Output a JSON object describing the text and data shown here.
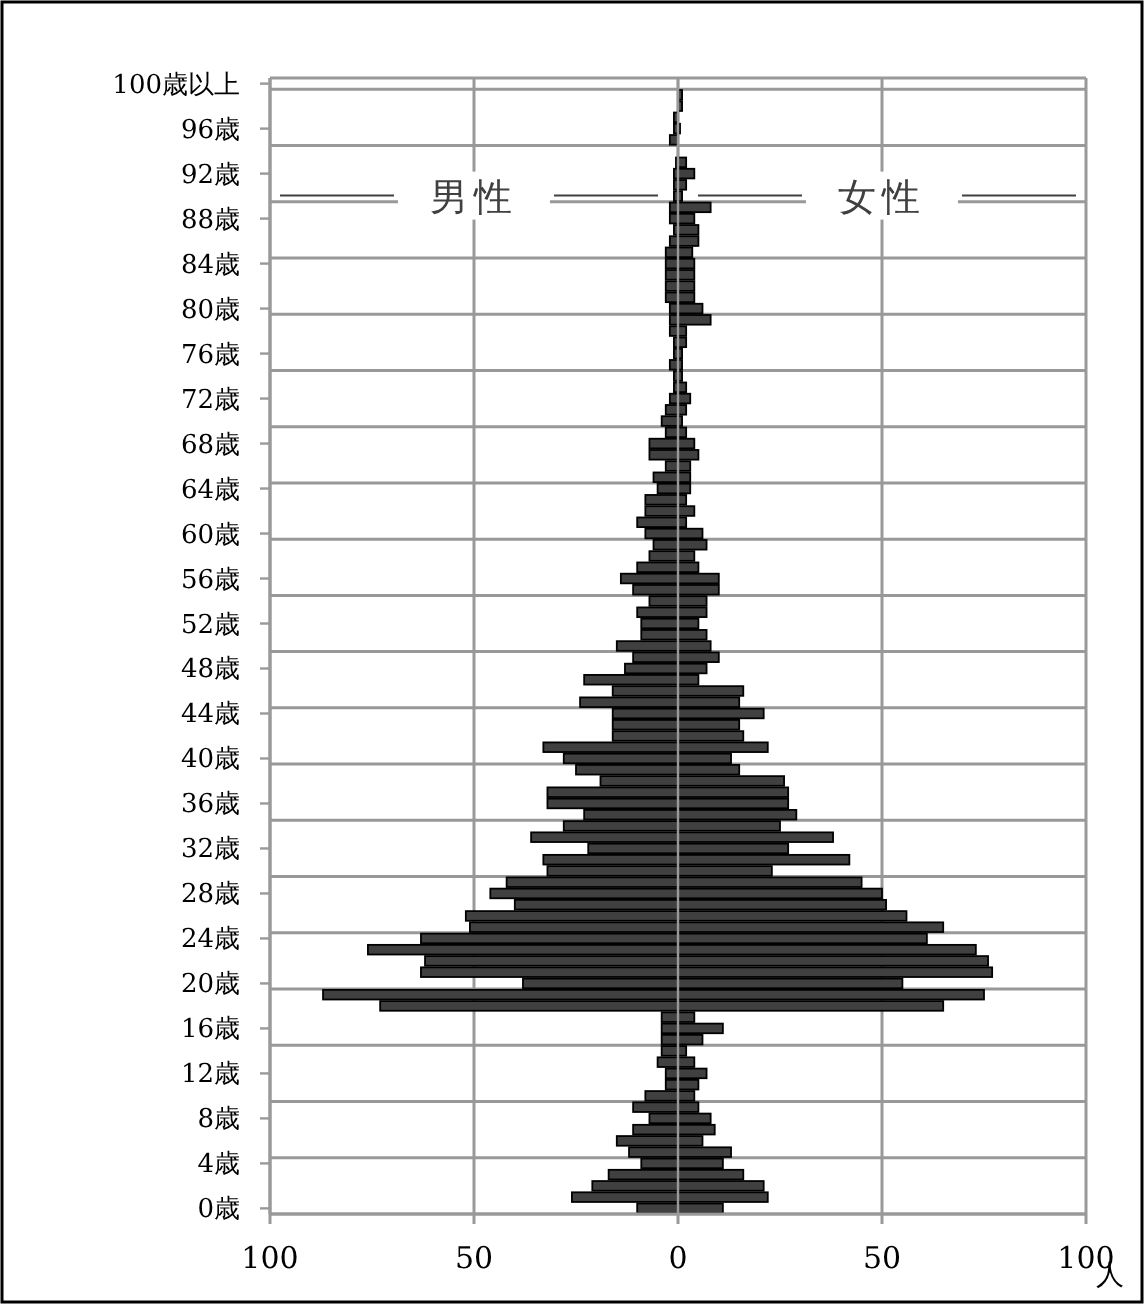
{
  "chart_data": {
    "type": "bar",
    "orientation": "horizontal",
    "stacked": true,
    "xlabel": "人",
    "categories": [
      "100歳以上",
      null,
      null,
      null,
      "96歳",
      null,
      null,
      null,
      "92歳",
      null,
      null,
      null,
      "88歳",
      null,
      null,
      null,
      "84歳",
      null,
      null,
      null,
      "80歳",
      null,
      null,
      null,
      "76歳",
      null,
      null,
      null,
      "72歳",
      null,
      null,
      null,
      "68歳",
      null,
      null,
      null,
      "64歳",
      null,
      null,
      null,
      "60歳",
      null,
      null,
      null,
      "56歳",
      null,
      null,
      null,
      "52歳",
      null,
      null,
      null,
      "48歳",
      null,
      null,
      null,
      "44歳",
      null,
      null,
      null,
      "40歳",
      null,
      null,
      null,
      "36歳",
      null,
      null,
      null,
      "32歳",
      null,
      null,
      null,
      "28歳",
      null,
      null,
      null,
      "24歳",
      null,
      null,
      null,
      "20歳",
      null,
      null,
      null,
      "16歳",
      null,
      null,
      null,
      "12歳",
      null,
      null,
      null,
      "8歳",
      null,
      null,
      null,
      "4歳",
      null,
      null,
      null,
      "0歳"
    ],
    "series": [
      {
        "name": "男性",
        "color": "#404040",
        "values": [
          0,
          0,
          0,
          -1,
          -1,
          -2,
          0,
          -0.5,
          -1,
          -1,
          -1,
          -2,
          -2,
          -1,
          -2,
          -3,
          -3,
          -3,
          -3,
          -3,
          -2,
          -2,
          -2,
          -1,
          -1,
          -2,
          -1,
          -1,
          -2,
          -3,
          -4,
          -3,
          -7,
          -7,
          -3,
          -6,
          -5,
          -8,
          -8,
          -10,
          -8,
          -6,
          -7,
          -10,
          -14,
          -11,
          -7,
          -10,
          -9,
          -9,
          -15,
          -11,
          -13,
          -23,
          -16,
          -24,
          -16,
          -16,
          -16,
          -33,
          -28,
          -25,
          -19,
          -32,
          -32,
          -23,
          -28,
          -36,
          -22,
          -33,
          -32,
          -42,
          -46,
          -40,
          -52,
          -51,
          -63,
          -76,
          -62,
          -63,
          -38,
          -87,
          -73,
          -4,
          -4,
          -4,
          -4,
          -5,
          -3,
          -3,
          -8,
          -11,
          -7,
          -11,
          -15,
          -12,
          -9,
          -17,
          -21,
          -26,
          -10
        ]
      },
      {
        "name": "女性",
        "color": "#404040",
        "values": [
          0,
          1,
          1,
          0,
          0.5,
          0,
          0,
          2,
          4,
          2,
          1,
          8,
          4,
          5,
          5,
          3.5,
          4,
          4,
          4,
          4,
          6,
          8,
          2,
          2,
          1,
          1,
          1,
          2,
          3,
          2,
          1,
          2,
          4,
          5,
          3,
          3,
          3,
          2,
          4,
          2,
          6,
          7,
          4,
          5,
          10,
          10,
          7,
          7,
          5,
          7,
          8,
          10,
          7,
          5,
          16,
          15,
          21,
          15,
          16,
          22,
          13,
          15,
          26,
          27,
          27,
          29,
          25,
          38,
          27,
          42,
          23,
          45,
          50,
          51,
          56,
          65,
          61,
          73,
          76,
          77,
          55,
          75,
          65,
          4,
          11,
          6,
          2,
          4,
          7,
          5,
          4,
          5,
          8,
          9,
          6,
          13,
          11,
          16,
          21,
          22,
          11
        ]
      }
    ],
    "xlim": [
      -100,
      100
    ],
    "xticks": [
      {
        "value": -100,
        "label": "100"
      },
      {
        "value": -50,
        "label": "50"
      },
      0,
      50,
      100
    ],
    "grid": true,
    "legend": "top"
  }
}
